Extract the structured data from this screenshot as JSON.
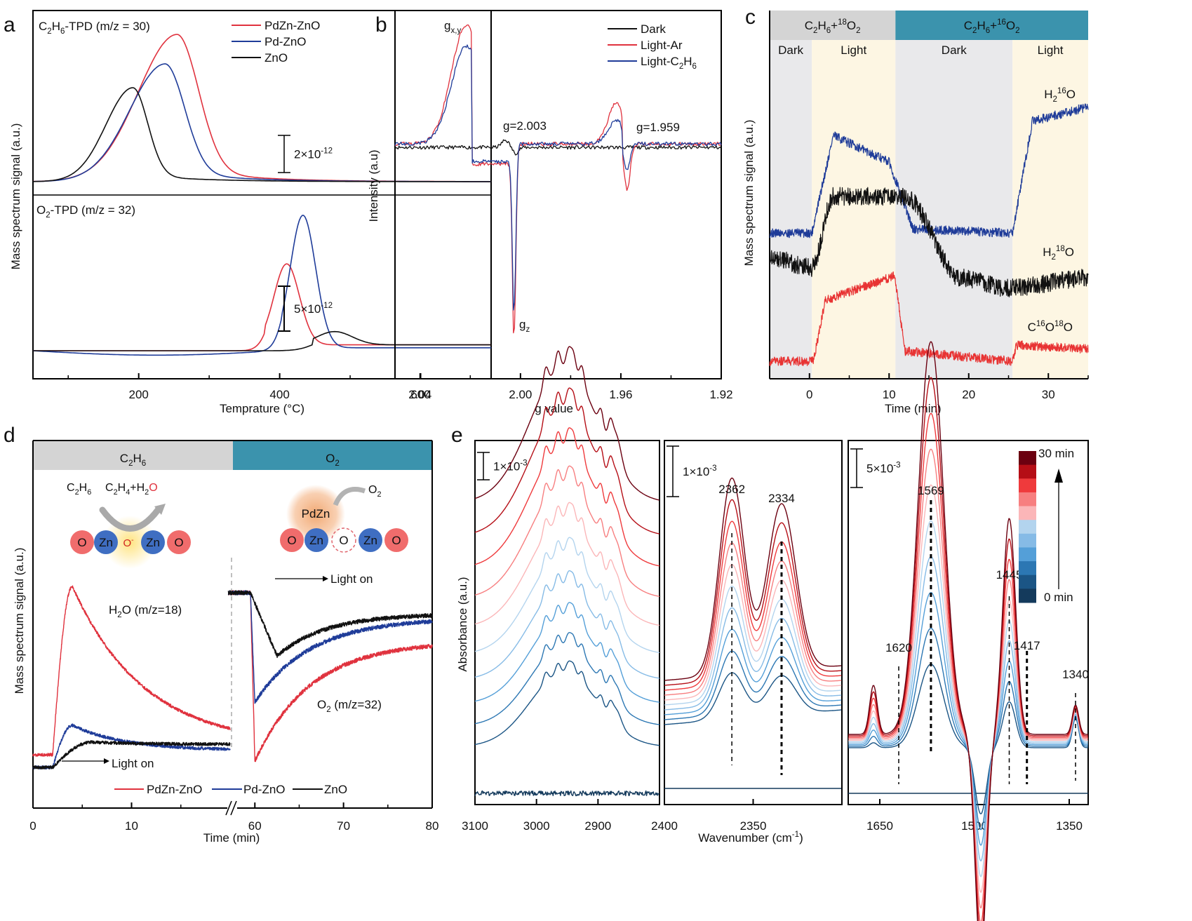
{
  "chart_data": [
    {
      "panel": "a",
      "type": "line",
      "xlabel": "Temprature (°C)",
      "ylabel": "Mass spectrum signal (a.u.)",
      "xlim": [
        50,
        700
      ],
      "xticks": [
        200,
        400,
        600
      ],
      "legend": [
        "PdZn-ZnO",
        "Pd-ZnO",
        "ZnO"
      ],
      "legend_position": "top-right",
      "subplots": [
        {
          "title": "C2H6-TPD (m/z = 30)",
          "title_parts": {
            "a": "C",
            "s1": "2",
            "b": "H",
            "s2": "6",
            "c": "-TPD (m/z = 30)"
          },
          "scale_bar": "2×10",
          "scale_bar_exp": "-12",
          "series": [
            {
              "name": "PdZn-ZnO",
              "color": "#e0323e",
              "peak_x": 255,
              "peak_height": 0.95,
              "width": 55,
              "tail": 0.1,
              "base": 0.0
            },
            {
              "name": "Pd-ZnO",
              "color": "#1f3c99",
              "peak_x": 238,
              "peak_height": 0.76,
              "width": 50,
              "tail": 0.08,
              "base": 0.0
            },
            {
              "name": "ZnO",
              "color": "#111111",
              "peak_x": 192,
              "peak_height": 0.62,
              "width": 38,
              "tail": 0.05,
              "base": 0.0
            }
          ]
        },
        {
          "title": "O2-TPD (m/z = 32)",
          "title_parts": {
            "a": "O",
            "s1": "2",
            "c": "-TPD (m/z = 32)"
          },
          "scale_bar": "5×10",
          "scale_bar_exp": "-12",
          "series": [
            {
              "name": "PdZn-ZnO",
              "color": "#e0323e",
              "peak_x": 410,
              "peak_height": 0.55,
              "width": 18,
              "base": 0.04
            },
            {
              "name": "Pd-ZnO",
              "color": "#1f3c99",
              "peak_x": 433,
              "peak_height": 0.9,
              "width": 18,
              "base": 0.02
            },
            {
              "name": "ZnO",
              "color": "#111111",
              "peak_x": 478,
              "peak_height": 0.09,
              "width": 25,
              "base": 0.04
            }
          ]
        }
      ]
    },
    {
      "panel": "b",
      "type": "line",
      "xlabel": "g value",
      "ylabel": "Intensity (a.u)",
      "xlim": [
        2.05,
        1.92
      ],
      "xticks": [
        2.04,
        2.0,
        1.96,
        1.92
      ],
      "xtick_labels": [
        "2.04",
        "2.00",
        "1.96",
        "1.92"
      ],
      "legend": [
        "Dark",
        "Light-Ar",
        "Light-C2H6"
      ],
      "legend_position": "top-right",
      "annotations": [
        {
          "text": "g",
          "sub": "x,y"
        },
        {
          "text": "g=2.003"
        },
        {
          "text": "g=1.959"
        },
        {
          "text": "g",
          "sub": "z"
        }
      ],
      "series": [
        {
          "name": "Dark",
          "color": "#111111",
          "features": [
            {
              "g": 2.003,
              "amp": 0.06
            }
          ],
          "gxy_amp": 0,
          "gz_amp": 0,
          "g2_amp": 0.02
        },
        {
          "name": "Light-Ar",
          "color": "#e0323e",
          "gxy_amp": 1.0,
          "gz_amp": 1.55,
          "g2_amp": 0.35
        },
        {
          "name": "Light-C2H6",
          "color": "#1f3c99",
          "gxy_amp": 0.82,
          "gz_amp": 1.35,
          "g2_amp": 0.2
        }
      ]
    },
    {
      "panel": "c",
      "type": "line",
      "xlabel": "Time (min)",
      "ylabel": "Mass spectrum signal (a.u.)",
      "xlim": [
        -5,
        35
      ],
      "xticks": [
        0,
        10,
        20,
        30
      ],
      "gas_bands": [
        {
          "label": "C2H6+18O2",
          "parts": {
            "a": "C",
            "s1": "2",
            "b": "H",
            "s2": "6",
            "c": "+",
            "sup": "18",
            "d": "O",
            "s3": "2"
          },
          "from": -5,
          "to": 10.8,
          "color": "#d4d4d4"
        },
        {
          "label": "C2H6+16O2",
          "parts": {
            "a": "C",
            "s1": "2",
            "b": "H",
            "s2": "6",
            "c": "+",
            "sup": "16",
            "d": "O",
            "s3": "2"
          },
          "from": 10.8,
          "to": 35,
          "color": "#3b93ad"
        }
      ],
      "phases": [
        {
          "label": "Dark",
          "from": -5,
          "to": 0.3,
          "color": "#e9e9eb"
        },
        {
          "label": "Light",
          "from": 0.3,
          "to": 10.8,
          "color": "#fdf6e3"
        },
        {
          "label": "Dark",
          "from": 10.8,
          "to": 25.5,
          "color": "#e9e9eb"
        },
        {
          "label": "Light",
          "from": 25.5,
          "to": 35,
          "color": "#fdf6e3"
        }
      ],
      "series": [
        {
          "name": "H216O",
          "label": {
            "a": "H",
            "s": "2",
            "sup": "16",
            "b": "O"
          },
          "color": "#1f3c99",
          "levels": [
            {
              "t": -5,
              "v": 0.0
            },
            {
              "t": 0.3,
              "v": 0.0
            },
            {
              "t": 3,
              "v": 0.48
            },
            {
              "t": 10,
              "v": 0.35
            },
            {
              "t": 13,
              "v": 0.02
            },
            {
              "t": 25.5,
              "v": 0.0
            },
            {
              "t": 28,
              "v": 0.55
            },
            {
              "t": 35,
              "v": 0.62
            }
          ],
          "offset": 0.63
        },
        {
          "name": "H218O",
          "label": {
            "a": "H",
            "s": "2",
            "sup": "18",
            "b": "O"
          },
          "color": "#111111",
          "levels": [
            {
              "t": -5,
              "v": 0.15
            },
            {
              "t": 0.3,
              "v": 0.1
            },
            {
              "t": 3,
              "v": 0.45
            },
            {
              "t": 12,
              "v": 0.45
            },
            {
              "t": 19,
              "v": 0.05
            },
            {
              "t": 25,
              "v": 0.0
            },
            {
              "t": 35,
              "v": 0.05
            }
          ],
          "offset": 0.36
        },
        {
          "name": "C16O18O",
          "label": {
            "a": "C",
            "sup": "16",
            "b": "O",
            "sup2": "18",
            "c": "O"
          },
          "color": "#e83333",
          "levels": [
            {
              "t": -5,
              "v": 0.0
            },
            {
              "t": 0.5,
              "v": 0.0
            },
            {
              "t": 2,
              "v": 0.3
            },
            {
              "t": 10.7,
              "v": 0.42
            },
            {
              "t": 12,
              "v": 0.05
            },
            {
              "t": 25.5,
              "v": 0.0
            },
            {
              "t": 26,
              "v": 0.08
            },
            {
              "t": 35,
              "v": 0.06
            }
          ],
          "offset": 0.0
        }
      ]
    },
    {
      "panel": "d",
      "type": "line",
      "xlabel": "Time (min)",
      "ylabel": "Mass spectrum signal (a.u.)",
      "axis_break": true,
      "segments": [
        {
          "xlim": [
            0,
            20
          ],
          "xticks": [
            0,
            10
          ]
        },
        {
          "xlim": [
            56,
            80
          ],
          "xticks": [
            60,
            70,
            80
          ]
        }
      ],
      "gas_bands": [
        {
          "label": "C2H6",
          "parts": {
            "a": "C",
            "s1": "2",
            "b": "H",
            "s2": "6"
          },
          "color": "#d4d4d4"
        },
        {
          "label": "O2",
          "parts": {
            "a": "O",
            "s1": "2"
          },
          "color": "#3b93ad"
        }
      ],
      "annotations": {
        "h2o": {
          "a": "H",
          "s": "2",
          "b": "O (m/z=18)"
        },
        "o2": {
          "a": "O",
          "s": "2",
          "b": " (m/z=32)"
        },
        "light_on": "Light on"
      },
      "schematic": {
        "left": {
          "reactant": {
            "a": "C",
            "s1": "2",
            "b": "H",
            "s2": "6"
          },
          "product": {
            "a": "C",
            "s1": "2",
            "b": "H",
            "s2": "4",
            "c": "+H",
            "s3": "2",
            "red": "O"
          },
          "atoms": [
            "O",
            "Zn",
            "O-",
            "Zn",
            "O"
          ]
        },
        "right": {
          "gas": {
            "a": "O",
            "s": "2"
          },
          "cluster": "PdZn",
          "atoms": [
            "O",
            "Zn",
            "O",
            "Zn",
            "O"
          ]
        }
      },
      "legend": [
        "PdZn-ZnO",
        "Pd-ZnO",
        "ZnO"
      ],
      "legend_position": "bottom-center",
      "series": [
        {
          "name": "PdZn-ZnO",
          "color": "#e0323e",
          "left": {
            "base": 0.08,
            "rise_at": 2,
            "peak_t": 4,
            "peak": 0.88,
            "end": 0.12
          },
          "right": {
            "start": 0.85,
            "drop_at": 59.5,
            "min_t": 60,
            "min": 0.05,
            "end": 0.62
          }
        },
        {
          "name": "Pd-ZnO",
          "color": "#1f3c99",
          "left": {
            "base": 0.02,
            "rise_at": 2,
            "peak_t": 4,
            "peak": 0.22,
            "end": 0.1
          },
          "right": {
            "start": 0.85,
            "drop_at": 59.5,
            "min_t": 60,
            "min": 0.33,
            "end": 0.73
          }
        },
        {
          "name": "ZnO",
          "color": "#111111",
          "left": {
            "base": 0.02,
            "rise_at": 2,
            "peak_t": 6,
            "peak": 0.14,
            "end": 0.13
          },
          "right": {
            "start": 0.85,
            "drop_at": 59.5,
            "min_t": 62.5,
            "min": 0.55,
            "end": 0.75
          }
        }
      ]
    },
    {
      "panel": "e",
      "type": "line",
      "xlabel": "Wavenumber (cm-1)",
      "xlabel_parts": {
        "a": "Wavenumber (cm",
        "sup": "-1",
        "b": ")"
      },
      "ylabel": "Absorbance (a.u.)",
      "time_range_min": [
        0,
        30
      ],
      "colorbar": {
        "top_label": "30 min",
        "bottom_label": "0 min",
        "colors": [
          "#6b0010",
          "#b50e16",
          "#ef3a3c",
          "#f77f80",
          "#fbb6b8",
          "#b3d4ee",
          "#86bbe6",
          "#549fd8",
          "#2c77b3",
          "#1b5585",
          "#143a5c"
        ]
      },
      "subplots": [
        {
          "xlim": [
            3100,
            2800
          ],
          "xticks": [
            3100,
            3000,
            2900
          ],
          "scale_bar": "1×10",
          "scale_bar_exp": "-3",
          "peaks": [
            2985,
            2965,
            2948,
            2940,
            2926,
            2895,
            2880
          ]
        },
        {
          "xlim": [
            2400,
            2300
          ],
          "xticks": [
            2400,
            2350
          ],
          "scale_bar": "1×10",
          "scale_bar_exp": "-3",
          "peak_labels": [
            "2362",
            "2334"
          ],
          "peaks": [
            2362,
            2334
          ]
        },
        {
          "xlim": [
            1700,
            1320
          ],
          "xticks": [
            1650,
            1500,
            1350
          ],
          "scale_bar": "5×10",
          "scale_bar_exp": "-3",
          "peak_labels": [
            "1620",
            "1569",
            "1445",
            "1417",
            "1340"
          ],
          "peaks": [
            1620,
            1569,
            1445,
            1417,
            1340
          ]
        }
      ]
    }
  ],
  "panel_labels": [
    "a",
    "b",
    "c",
    "d",
    "e"
  ]
}
